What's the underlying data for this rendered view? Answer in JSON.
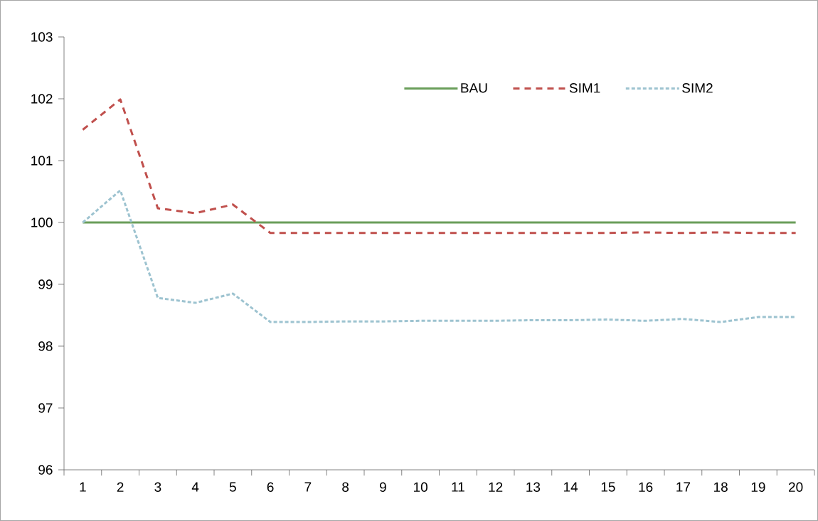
{
  "chart_data": {
    "type": "line",
    "categories": [
      "1",
      "2",
      "3",
      "4",
      "5",
      "6",
      "7",
      "8",
      "9",
      "10",
      "11",
      "12",
      "13",
      "14",
      "15",
      "16",
      "17",
      "18",
      "19",
      "20"
    ],
    "series": [
      {
        "name": "BAU",
        "color": "#6a9e5a",
        "line_style": "solid",
        "values": [
          100,
          100,
          100,
          100,
          100,
          100,
          100,
          100,
          100,
          100,
          100,
          100,
          100,
          100,
          100,
          100,
          100,
          100,
          100,
          100
        ]
      },
      {
        "name": "SIM1",
        "color": "#c0504d",
        "line_style": "dashed",
        "values": [
          101.5,
          101.99,
          100.23,
          100.15,
          100.29,
          99.83,
          99.83,
          99.83,
          99.83,
          99.83,
          99.83,
          99.83,
          99.83,
          99.83,
          99.83,
          99.84,
          99.83,
          99.84,
          99.83,
          99.83
        ]
      },
      {
        "name": "SIM2",
        "color": "#9dc3d0",
        "line_style": "dotted",
        "values": [
          100,
          100.52,
          98.78,
          98.7,
          98.85,
          98.39,
          98.39,
          98.4,
          98.4,
          98.41,
          98.41,
          98.41,
          98.42,
          98.42,
          98.43,
          98.41,
          98.44,
          98.39,
          98.47,
          98.47
        ]
      }
    ],
    "ylim": [
      96,
      103
    ],
    "yticks": [
      96,
      97,
      98,
      99,
      100,
      101,
      102,
      103
    ],
    "grid": false,
    "legend": "top right",
    "marker": "none"
  }
}
